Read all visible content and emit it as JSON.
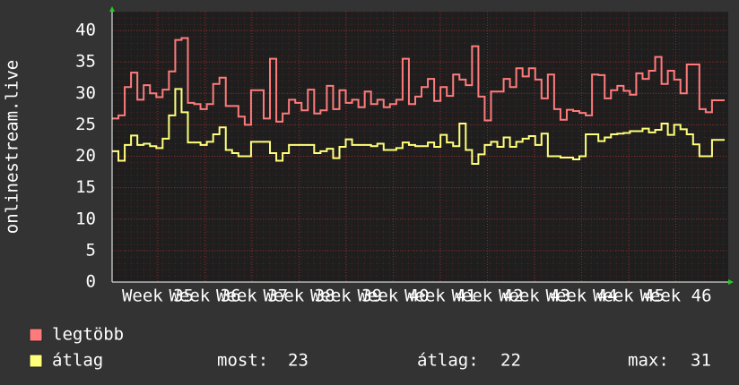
{
  "chart_data": {
    "type": "step-line",
    "y_label": "onlinestream.live",
    "x_tick_labels": [
      "Week 35",
      "Week 36",
      "Week 37",
      "Week 38",
      "Week 39",
      "Week 40",
      "Week 41",
      "Week 42",
      "Week 43",
      "Week 44",
      "Week 45",
      "Week 46"
    ],
    "ylim": [
      0,
      43
    ],
    "yticks": [
      0,
      5,
      10,
      15,
      20,
      25,
      30,
      35,
      40
    ],
    "grid": true,
    "series": [
      {
        "name": "legtöbb",
        "color": "#ff7b7b",
        "values": [
          26,
          26.5,
          31,
          33.3,
          29,
          31.3,
          30,
          29.4,
          30.6,
          33.5,
          38.5,
          38.8,
          28.5,
          28.3,
          27.5,
          28.3,
          31.5,
          32.5,
          28,
          28,
          26.3,
          25,
          30.5,
          30.5,
          26,
          35.5,
          25.5,
          26.8,
          29,
          28.5,
          27.3,
          30.6,
          26.8,
          27.3,
          31.2,
          27.5,
          30.5,
          28.5,
          29,
          27.8,
          30.3,
          28.3,
          29,
          27.8,
          28.3,
          29,
          35.5,
          28.3,
          29.5,
          31,
          32.3,
          28.8,
          31,
          29.6,
          33,
          32.2,
          31.3,
          37.5,
          29.5,
          25.7,
          30.3,
          30.3,
          32.3,
          31,
          34,
          32.7,
          34,
          32.2,
          29.2,
          33,
          27.5,
          25.8,
          27.4,
          27.2,
          26.9,
          26.5,
          33,
          32.9,
          29.2,
          30.5,
          31.2,
          30.4,
          29.8,
          33.2,
          32.3,
          33.6,
          35.8,
          31.5,
          33.6,
          32.2,
          30,
          34.6,
          34.6,
          27.5,
          27,
          28.9,
          28.9
        ]
      },
      {
        "name": "átlag",
        "color": "#ffff7b",
        "values": [
          20.8,
          19.3,
          21.8,
          23.3,
          21.8,
          22,
          21.6,
          21.3,
          22.8,
          26.5,
          30.7,
          27,
          22.2,
          22.2,
          21.8,
          22.3,
          23.5,
          24.6,
          21,
          20.5,
          20,
          20,
          22.3,
          22.3,
          22.3,
          20.5,
          19.3,
          20.5,
          21.8,
          21.8,
          21.8,
          21.8,
          20.5,
          20.8,
          21.2,
          19.7,
          21.5,
          22.7,
          21.8,
          21.8,
          21.8,
          21.6,
          22,
          21,
          21,
          21.3,
          22.2,
          21.8,
          21.6,
          21.6,
          22.2,
          21.5,
          23.4,
          22.2,
          21.6,
          25.2,
          21,
          18.8,
          20.3,
          21.8,
          22.3,
          21.5,
          23,
          21.5,
          22.3,
          22.8,
          23.2,
          21.8,
          23.6,
          20,
          20,
          19.8,
          19.8,
          19.5,
          20,
          23.5,
          23.5,
          22.4,
          23,
          23.5,
          23.6,
          23.7,
          24,
          24,
          24.4,
          23.8,
          24.2,
          25.2,
          23.4,
          25,
          24.3,
          23.5,
          21.9,
          20,
          20,
          22.6,
          22.6
        ]
      }
    ],
    "stats": [
      {
        "label": "most:",
        "value": 23
      },
      {
        "label": "átlag:",
        "value": 22
      },
      {
        "label": "max:",
        "value": 31
      }
    ]
  }
}
